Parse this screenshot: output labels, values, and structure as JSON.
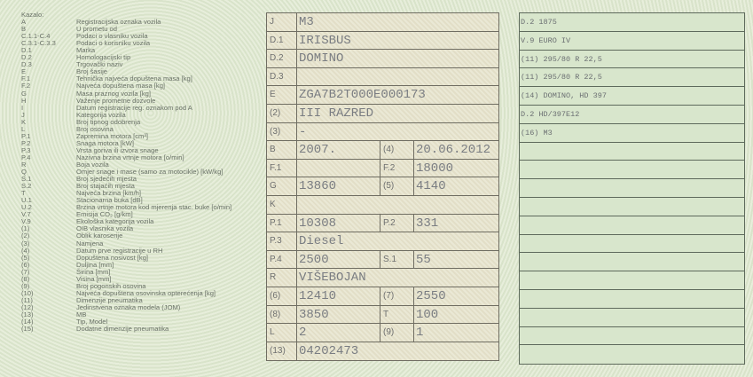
{
  "legend": {
    "title": "Kazalo:",
    "items": [
      {
        "code": "A",
        "text": "Registracijska oznaka vozila"
      },
      {
        "code": "B",
        "text": "U prometu od"
      },
      {
        "code": "C.1.1-C.4",
        "text": "Podaci o vlasniku vozila"
      },
      {
        "code": "C.3.1-C.3.3",
        "text": "Podaci o korisniku vozila"
      },
      {
        "code": "D.1",
        "text": "Marka"
      },
      {
        "code": "D.2",
        "text": "Homologacijski tip"
      },
      {
        "code": "D.3",
        "text": "Trgovački naziv"
      },
      {
        "code": "E",
        "text": "Broj šasije"
      },
      {
        "code": "F.1",
        "text": "Tehnička najveća dopuštena masa [kg]"
      },
      {
        "code": "F.2",
        "text": "Najveća dopuštena masa [kg]"
      },
      {
        "code": "G",
        "text": "Masa praznog vozila [kg]"
      },
      {
        "code": "H",
        "text": "Važenje prometne dozvole"
      },
      {
        "code": "I",
        "text": "Datum registracije reg. oznakom pod A"
      },
      {
        "code": "J",
        "text": "Kategorija vozila"
      },
      {
        "code": "K",
        "text": "Broj tipnog odobrenja"
      },
      {
        "code": "L",
        "text": "Broj osovina"
      },
      {
        "code": "P.1",
        "text": "Zapremina motora [cm³]"
      },
      {
        "code": "P.2",
        "text": "Snaga motora [kW]"
      },
      {
        "code": "P.3",
        "text": "Vrsta goriva ili izvora snage"
      },
      {
        "code": "P.4",
        "text": "Nazivna brzina vrtnje motora [o/min]"
      },
      {
        "code": "R",
        "text": "Boja vozila"
      },
      {
        "code": "Q",
        "text": "Omjer snage i mase (samo za motocikle) [kW/kg]"
      },
      {
        "code": "S.1",
        "text": "Broj sjedećih mjesta"
      },
      {
        "code": "S.2",
        "text": "Broj stajaćih mjesta"
      },
      {
        "code": "T",
        "text": "Najveća brzina [km/h]"
      },
      {
        "code": "U.1",
        "text": "Stacionarna buka [dB]"
      },
      {
        "code": "U.2",
        "text": "Brzina vrtnje motora kod mjerenja stac. buke [o/min]"
      },
      {
        "code": "V.7",
        "text": "Emisija CO₂ [g/km]"
      },
      {
        "code": "V.9",
        "text": "Ekološka kategorija vozila"
      },
      {
        "code": "(1)",
        "text": "OIB vlasnika vozila"
      },
      {
        "code": "(2)",
        "text": "Oblik karoserije"
      },
      {
        "code": "(3)",
        "text": "Namjena"
      },
      {
        "code": "(4)",
        "text": "Datum prve registracije u RH"
      },
      {
        "code": "(5)",
        "text": "Dopuštena nosivost [kg]"
      },
      {
        "code": "(6)",
        "text": "Duljina [mm]"
      },
      {
        "code": "(7)",
        "text": "Širina [mm]"
      },
      {
        "code": "(8)",
        "text": "Visina [mm]"
      },
      {
        "code": "(9)",
        "text": "Broj pogonskih osovina"
      },
      {
        "code": "(10)",
        "text": "Najveća dopuštena osovinska opterećenja [kg]"
      },
      {
        "code": "(11)",
        "text": "Dimenzije pneumatika"
      },
      {
        "code": "(12)",
        "text": "Jedinstvena oznaka modela (JOM)"
      },
      {
        "code": "(13)",
        "text": "MB"
      },
      {
        "code": "(14)",
        "text": "Tip, Model"
      },
      {
        "code": "(15)",
        "text": "Dodatne dimenzije pneumatika"
      }
    ]
  },
  "fields": [
    {
      "label": "J",
      "value": "M3"
    },
    {
      "label": "D.1",
      "value": "IRISBUS"
    },
    {
      "label": "D.2",
      "value": "DOMINO"
    },
    {
      "label": "D.3",
      "value": ""
    },
    {
      "label": "E",
      "value": "ZGA7B2T000E000173"
    },
    {
      "label": "(2)",
      "value": "III RAZRED"
    },
    {
      "label": "(3)",
      "value": "-"
    },
    {
      "label": "B",
      "value": "2007.",
      "label2": "(4)",
      "value2": "20.06.2012"
    },
    {
      "label": "F.1",
      "value": "",
      "label2": "F.2",
      "value2": "18000"
    },
    {
      "label": "G",
      "value": "13860",
      "label2": "(5)",
      "value2": "4140"
    },
    {
      "label": "K",
      "value": ""
    },
    {
      "label": "P.1",
      "value": "10308",
      "label2": "P.2",
      "value2": "331"
    },
    {
      "label": "P.3",
      "value": "Diesel"
    },
    {
      "label": "P.4",
      "value": "2500",
      "label2": "S.1",
      "value2": "55"
    },
    {
      "label": "R",
      "value": "VIŠEBOJAN"
    },
    {
      "label": "(6)",
      "value": "12410",
      "label2": "(7)",
      "value2": "2550"
    },
    {
      "label": "(8)",
      "value": "3850",
      "label2": "T",
      "value2": "100"
    },
    {
      "label": "L",
      "value": "2",
      "label2": "(9)",
      "value2": "1"
    },
    {
      "label": "(13)",
      "value": "04202473"
    }
  ],
  "additional": [
    "D.2 1875",
    "V.9 EURO IV",
    "(11) 295/80 R 22,5",
    "(11) 295/80 R 22,5",
    "(14) DOMINO, HD 397",
    "D.2 HD/397E12",
    "(16) M3",
    "",
    "",
    "",
    "",
    "",
    "",
    "",
    "",
    "",
    "",
    "",
    ""
  ]
}
